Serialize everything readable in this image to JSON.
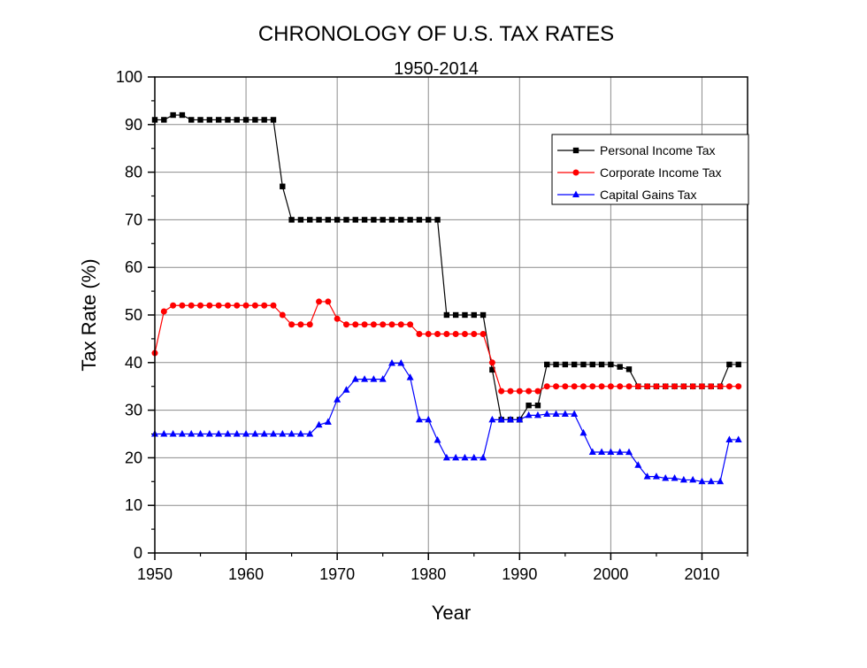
{
  "chart_data": {
    "type": "line",
    "title": "CHRONOLOGY OF U.S. TAX RATES",
    "subtitle": "1950-2014",
    "xlabel": "Year",
    "ylabel": "Tax Rate (%)",
    "xlim": [
      1950,
      2015
    ],
    "ylim": [
      0,
      100
    ],
    "x_ticks": [
      1950,
      1960,
      1970,
      1980,
      1990,
      2000,
      2010
    ],
    "y_ticks": [
      0,
      10,
      20,
      30,
      40,
      50,
      60,
      70,
      80,
      90,
      100
    ],
    "grid": true,
    "legend_position": "top-right",
    "x": [
      1950,
      1951,
      1952,
      1953,
      1954,
      1955,
      1956,
      1957,
      1958,
      1959,
      1960,
      1961,
      1962,
      1963,
      1964,
      1965,
      1966,
      1967,
      1968,
      1969,
      1970,
      1971,
      1972,
      1973,
      1974,
      1975,
      1976,
      1977,
      1978,
      1979,
      1980,
      1981,
      1982,
      1983,
      1984,
      1985,
      1986,
      1987,
      1988,
      1989,
      1990,
      1991,
      1992,
      1993,
      1994,
      1995,
      1996,
      1997,
      1998,
      1999,
      2000,
      2001,
      2002,
      2003,
      2004,
      2005,
      2006,
      2007,
      2008,
      2009,
      2010,
      2011,
      2012,
      2013,
      2014
    ],
    "series": [
      {
        "name": "Personal Income Tax",
        "color": "#000000",
        "marker": "square",
        "values": [
          91,
          91,
          92,
          92,
          91,
          91,
          91,
          91,
          91,
          91,
          91,
          91,
          91,
          91,
          77,
          70,
          70,
          70,
          70,
          70,
          70,
          70,
          70,
          70,
          70,
          70,
          70,
          70,
          70,
          70,
          70,
          70,
          50,
          50,
          50,
          50,
          50,
          38.5,
          28,
          28,
          28,
          31,
          31,
          39.6,
          39.6,
          39.6,
          39.6,
          39.6,
          39.6,
          39.6,
          39.6,
          39.1,
          38.6,
          35,
          35,
          35,
          35,
          35,
          35,
          35,
          35,
          35,
          35,
          39.6,
          39.6
        ]
      },
      {
        "name": "Corporate Income Tax",
        "color": "#ff0000",
        "marker": "circle",
        "values": [
          42,
          50.75,
          52,
          52,
          52,
          52,
          52,
          52,
          52,
          52,
          52,
          52,
          52,
          52,
          50,
          48,
          48,
          48,
          52.8,
          52.8,
          49.2,
          48,
          48,
          48,
          48,
          48,
          48,
          48,
          48,
          46,
          46,
          46,
          46,
          46,
          46,
          46,
          46,
          40,
          34,
          34,
          34,
          34,
          34,
          35,
          35,
          35,
          35,
          35,
          35,
          35,
          35,
          35,
          35,
          35,
          35,
          35,
          35,
          35,
          35,
          35,
          35,
          35,
          35,
          35,
          35
        ]
      },
      {
        "name": "Capital Gains Tax",
        "color": "#0000ff",
        "marker": "triangle",
        "values": [
          25,
          25,
          25,
          25,
          25,
          25,
          25,
          25,
          25,
          25,
          25,
          25,
          25,
          25,
          25,
          25,
          25,
          25,
          26.9,
          27.5,
          32.21,
          34.25,
          36.5,
          36.5,
          36.5,
          36.5,
          39.875,
          39.875,
          36.875,
          28,
          28,
          23.7,
          20,
          20,
          20,
          20,
          20,
          28,
          28,
          28,
          28,
          28.93,
          28.93,
          29.19,
          29.19,
          29.19,
          29.19,
          25.2,
          21.19,
          21.19,
          21.19,
          21.17,
          21.16,
          18.45,
          16.05,
          16.05,
          15.7,
          15.7,
          15.35,
          15.35,
          15,
          15,
          15,
          23.8,
          23.8
        ]
      }
    ]
  }
}
